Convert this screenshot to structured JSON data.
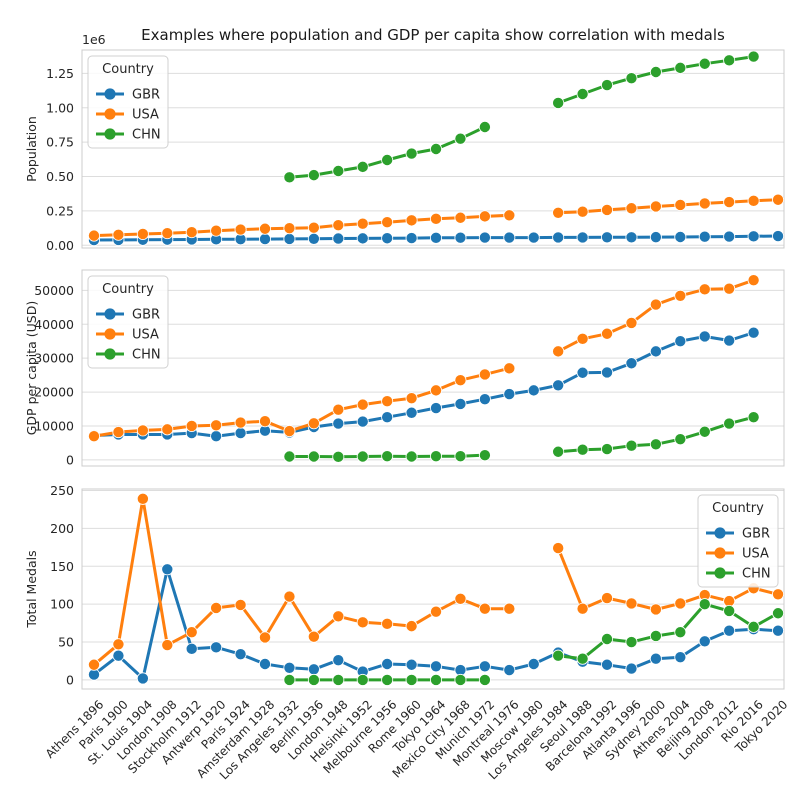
{
  "chart_data": {
    "type": "line",
    "title": "Examples where population and GDP per capita show correlation with medals",
    "categories": [
      "Athens 1896",
      "Paris 1900",
      "St. Louis 1904",
      "London 1908",
      "Stockholm 1912",
      "Antwerp 1920",
      "Paris 1924",
      "Amsterdam 1928",
      "Los Angeles 1932",
      "Berlin 1936",
      "London 1948",
      "Helsinki 1952",
      "Melbourne 1956",
      "Rome 1960",
      "Tokyo 1964",
      "Mexico City 1968",
      "Munich 1972",
      "Montreal 1976",
      "Moscow 1980",
      "Los Angeles 1984",
      "Seoul 1988",
      "Barcelona 1992",
      "Atlanta 1996",
      "Sydney 2000",
      "Athens 2004",
      "Beijing 2008",
      "London 2012",
      "Rio 2016",
      "Tokyo 2020"
    ],
    "colors": {
      "GBR": "#1f77b4",
      "USA": "#ff7f0e",
      "CHN": "#2ca02c"
    },
    "panels": [
      {
        "ylabel": "Population",
        "offset_text": "1e6",
        "ylim": [
          -0.02,
          1.42
        ],
        "yticks": [
          0.0,
          0.25,
          0.5,
          0.75,
          1.0,
          1.25
        ],
        "ytick_labels": [
          "0.00",
          "0.25",
          "0.50",
          "0.75",
          "1.00",
          "1.25"
        ],
        "legend": {
          "title": "Country",
          "position": "top-left"
        },
        "series": [
          {
            "name": "GBR",
            "values": [
              0.038,
              0.039,
              0.04,
              0.041,
              0.042,
              0.043,
              0.044,
              0.045,
              0.046,
              0.047,
              0.049,
              0.05,
              0.051,
              0.052,
              0.054,
              0.055,
              0.056,
              0.056,
              0.056,
              0.057,
              0.057,
              0.058,
              0.058,
              0.059,
              0.06,
              0.062,
              0.063,
              0.065,
              0.067
            ]
          },
          {
            "name": "USA",
            "values": [
              0.07,
              0.076,
              0.082,
              0.088,
              0.095,
              0.106,
              0.114,
              0.12,
              0.124,
              0.128,
              0.146,
              0.157,
              0.168,
              0.181,
              0.192,
              0.2,
              0.21,
              0.218,
              null,
              0.236,
              0.244,
              0.257,
              0.269,
              0.282,
              0.293,
              0.304,
              0.314,
              0.323,
              0.331
            ]
          },
          {
            "name": "CHN",
            "values": [
              null,
              null,
              null,
              null,
              null,
              null,
              null,
              null,
              0.494,
              0.51,
              0.54,
              0.57,
              0.62,
              0.667,
              0.7,
              0.775,
              0.86,
              null,
              null,
              1.035,
              1.1,
              1.165,
              1.215,
              1.26,
              1.29,
              1.32,
              1.345,
              1.372,
              null
            ]
          }
        ]
      },
      {
        "ylabel": "GDP per capita (USD)",
        "ylim": [
          -1800,
          56000
        ],
        "yticks": [
          0,
          10000,
          20000,
          30000,
          40000,
          50000
        ],
        "ytick_labels": [
          "0",
          "10000",
          "20000",
          "30000",
          "40000",
          "50000"
        ],
        "legend": {
          "title": "Country",
          "position": "top-left"
        },
        "series": [
          {
            "name": "GBR",
            "values": [
              7200,
              7500,
              7500,
              7500,
              7900,
              7000,
              7900,
              8600,
              8100,
              9700,
              10700,
              11300,
              12600,
              13900,
              15300,
              16500,
              17900,
              19400,
              20500,
              22000,
              25700,
              25800,
              28500,
              32000,
              35000,
              36400,
              35200,
              37500,
              null
            ]
          },
          {
            "name": "USA",
            "values": [
              7000,
              8200,
              8700,
              9000,
              10000,
              10200,
              11000,
              11400,
              8500,
              10800,
              14800,
              16300,
              17300,
              18200,
              20500,
              23500,
              25200,
              27000,
              null,
              32000,
              35700,
              37200,
              40400,
              45800,
              48400,
              50300,
              50500,
              53000,
              null
            ]
          },
          {
            "name": "CHN",
            "values": [
              null,
              null,
              null,
              null,
              null,
              null,
              null,
              null,
              1000,
              1000,
              900,
              1000,
              1100,
              1000,
              1100,
              1100,
              1400,
              null,
              null,
              2400,
              3000,
              3200,
              4200,
              4600,
              6100,
              8300,
              10700,
              12600,
              null
            ]
          }
        ]
      },
      {
        "ylabel": "Total Medals",
        "ylim": [
          -12,
          252
        ],
        "yticks": [
          0,
          50,
          100,
          150,
          200,
          250
        ],
        "ytick_labels": [
          "0",
          "50",
          "100",
          "150",
          "200",
          "250"
        ],
        "legend": {
          "title": "Country",
          "position": "top-right"
        },
        "series": [
          {
            "name": "GBR",
            "values": [
              7,
              32,
              2,
              146,
              41,
              43,
              34,
              21,
              16,
              14,
              26,
              11,
              21,
              20,
              18,
              13,
              18,
              13,
              21,
              36,
              24,
              20,
              15,
              28,
              30,
              51,
              65,
              67,
              65
            ]
          },
          {
            "name": "USA",
            "values": [
              20,
              47,
              239,
              46,
              63,
              95,
              99,
              56,
              110,
              57,
              84,
              76,
              74,
              71,
              90,
              107,
              94,
              94,
              null,
              174,
              94,
              108,
              101,
              93,
              101,
              112,
              104,
              121,
              113
            ]
          },
          {
            "name": "CHN",
            "values": [
              null,
              null,
              null,
              null,
              null,
              null,
              null,
              null,
              0,
              0,
              0,
              0,
              0,
              0,
              0,
              0,
              0,
              null,
              null,
              32,
              28,
              54,
              50,
              58,
              63,
              100,
              91,
              70,
              88
            ]
          }
        ]
      }
    ]
  }
}
